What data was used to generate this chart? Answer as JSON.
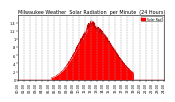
{
  "title": "Milwaukee Weather  Solar Radiation  per Minute  (24 Hours)",
  "fill_color": "#FF0000",
  "line_color": "#CC0000",
  "background_color": "#FFFFFF",
  "plot_bg_color": "#FFFFFF",
  "legend_label": "Solar Rad",
  "legend_color": "#FF0000",
  "xlim": [
    0,
    1440
  ],
  "ylim": [
    0,
    1.6
  ],
  "grid_color": "#999999",
  "title_fontsize": 3.5,
  "tick_fontsize": 2.5,
  "yticks": [
    0,
    0.2,
    0.4,
    0.6,
    0.8,
    1.0,
    1.2,
    1.4
  ],
  "ylabels": [
    "0",
    ".2",
    ".4",
    ".6",
    ".8",
    "1",
    "1.2",
    "1.4"
  ]
}
